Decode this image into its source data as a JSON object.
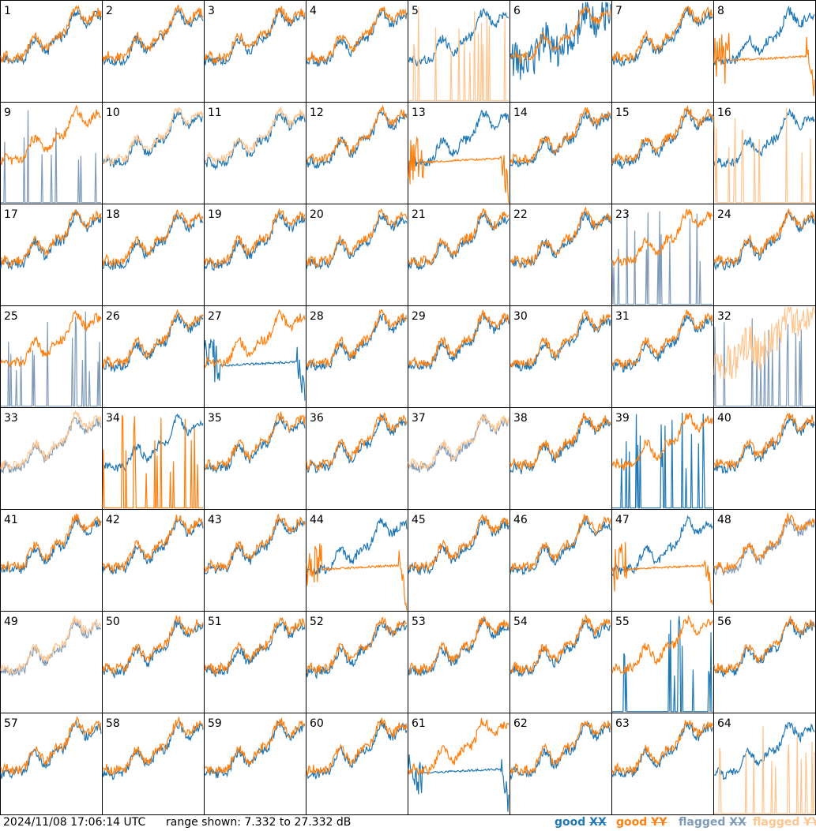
{
  "timestamp": "2024/11/08 17:06:14 UTC",
  "range_text": "range shown: 7.332 to 27.332 dB",
  "legend": [
    {
      "label": "good",
      "pol": "XX",
      "color": "#1f77b4"
    },
    {
      "label": "good",
      "pol": "YY",
      "color": "#ff7f0e"
    },
    {
      "label": "flagged",
      "pol": "XX",
      "color": "#7f9bb8"
    },
    {
      "label": "flagged",
      "pol": "YY",
      "color": "#ffc58f"
    }
  ],
  "chart_data": {
    "type": "line",
    "title": "",
    "ylim": [
      7.332,
      27.332
    ],
    "yunit": "dB",
    "grid": {
      "rows": 8,
      "cols": 8
    },
    "series_names": [
      "good XX",
      "good YY",
      "flagged XX",
      "flagged YY"
    ],
    "colors": {
      "good_xx": "#1f77b4",
      "good_yy": "#ff7f0e",
      "flagged_xx": "#7f9bb8",
      "flagged_yy": "#ffc58f"
    },
    "panels": [
      {
        "label": "1",
        "xx": "good",
        "yy": "good",
        "xx_style": "normal",
        "yy_style": "normal"
      },
      {
        "label": "2",
        "xx": "good",
        "yy": "good",
        "xx_style": "normal",
        "yy_style": "normal"
      },
      {
        "label": "3",
        "xx": "good",
        "yy": "good",
        "xx_style": "normal",
        "yy_style": "normal"
      },
      {
        "label": "4",
        "xx": "good",
        "yy": "good",
        "xx_style": "normal",
        "yy_style": "normal"
      },
      {
        "label": "5",
        "xx": "good",
        "yy": "flagged",
        "xx_style": "normal",
        "yy_style": "spiky"
      },
      {
        "label": "6",
        "xx": "good",
        "yy": "good",
        "xx_style": "noisy",
        "yy_style": "normal"
      },
      {
        "label": "7",
        "xx": "good",
        "yy": "good",
        "xx_style": "normal",
        "yy_style": "normal"
      },
      {
        "label": "8",
        "xx": "good",
        "yy": "good",
        "xx_style": "normal",
        "yy_style": "flat"
      },
      {
        "label": "9",
        "xx": "flagged",
        "yy": "good",
        "xx_style": "spiky",
        "yy_style": "normal"
      },
      {
        "label": "10",
        "xx": "good",
        "yy": "flagged",
        "xx_style": "normal",
        "yy_style": "normal"
      },
      {
        "label": "11",
        "xx": "good",
        "yy": "flagged",
        "xx_style": "normal",
        "yy_style": "normal"
      },
      {
        "label": "12",
        "xx": "good",
        "yy": "good",
        "xx_style": "normal",
        "yy_style": "normal"
      },
      {
        "label": "13",
        "xx": "good",
        "yy": "good",
        "xx_style": "normal",
        "yy_style": "flat"
      },
      {
        "label": "14",
        "xx": "good",
        "yy": "good",
        "xx_style": "normal",
        "yy_style": "normal"
      },
      {
        "label": "15",
        "xx": "good",
        "yy": "good",
        "xx_style": "normal",
        "yy_style": "normal"
      },
      {
        "label": "16",
        "xx": "good",
        "yy": "flagged",
        "xx_style": "normal",
        "yy_style": "spiky"
      },
      {
        "label": "17",
        "xx": "good",
        "yy": "good",
        "xx_style": "normal",
        "yy_style": "normal"
      },
      {
        "label": "18",
        "xx": "good",
        "yy": "good",
        "xx_style": "normal",
        "yy_style": "normal"
      },
      {
        "label": "19",
        "xx": "good",
        "yy": "good",
        "xx_style": "normal",
        "yy_style": "normal"
      },
      {
        "label": "20",
        "xx": "good",
        "yy": "good",
        "xx_style": "normal",
        "yy_style": "normal"
      },
      {
        "label": "21",
        "xx": "good",
        "yy": "good",
        "xx_style": "normal",
        "yy_style": "normal"
      },
      {
        "label": "22",
        "xx": "good",
        "yy": "good",
        "xx_style": "normal",
        "yy_style": "normal"
      },
      {
        "label": "23",
        "xx": "flagged",
        "yy": "good",
        "xx_style": "spiky",
        "yy_style": "normal"
      },
      {
        "label": "24",
        "xx": "good",
        "yy": "good",
        "xx_style": "normal",
        "yy_style": "normal"
      },
      {
        "label": "25",
        "xx": "flagged",
        "yy": "good",
        "xx_style": "spiky",
        "yy_style": "normal"
      },
      {
        "label": "26",
        "xx": "good",
        "yy": "good",
        "xx_style": "normal",
        "yy_style": "normal"
      },
      {
        "label": "27",
        "xx": "good",
        "yy": "good",
        "xx_style": "flat",
        "yy_style": "normal"
      },
      {
        "label": "28",
        "xx": "good",
        "yy": "good",
        "xx_style": "normal",
        "yy_style": "normal"
      },
      {
        "label": "29",
        "xx": "good",
        "yy": "good",
        "xx_style": "normal",
        "yy_style": "normal"
      },
      {
        "label": "30",
        "xx": "good",
        "yy": "good",
        "xx_style": "normal",
        "yy_style": "normal"
      },
      {
        "label": "31",
        "xx": "good",
        "yy": "good",
        "xx_style": "normal",
        "yy_style": "normal"
      },
      {
        "label": "32",
        "xx": "flagged",
        "yy": "flagged",
        "xx_style": "spiky",
        "yy_style": "noisy"
      },
      {
        "label": "33",
        "xx": "flagged",
        "yy": "flagged",
        "xx_style": "normal",
        "yy_style": "normal"
      },
      {
        "label": "34",
        "xx": "good",
        "yy": "good",
        "xx_style": "normal",
        "yy_style": "spiky"
      },
      {
        "label": "35",
        "xx": "good",
        "yy": "good",
        "xx_style": "normal",
        "yy_style": "normal"
      },
      {
        "label": "36",
        "xx": "good",
        "yy": "good",
        "xx_style": "normal",
        "yy_style": "normal"
      },
      {
        "label": "37",
        "xx": "flagged",
        "yy": "flagged",
        "xx_style": "normal",
        "yy_style": "normal"
      },
      {
        "label": "38",
        "xx": "good",
        "yy": "good",
        "xx_style": "normal",
        "yy_style": "normal"
      },
      {
        "label": "39",
        "xx": "good",
        "yy": "good",
        "xx_style": "spiky",
        "yy_style": "normal"
      },
      {
        "label": "40",
        "xx": "good",
        "yy": "good",
        "xx_style": "normal",
        "yy_style": "normal"
      },
      {
        "label": "41",
        "xx": "good",
        "yy": "good",
        "xx_style": "normal",
        "yy_style": "normal"
      },
      {
        "label": "42",
        "xx": "good",
        "yy": "good",
        "xx_style": "normal",
        "yy_style": "normal"
      },
      {
        "label": "43",
        "xx": "good",
        "yy": "good",
        "xx_style": "normal",
        "yy_style": "normal"
      },
      {
        "label": "44",
        "xx": "good",
        "yy": "good",
        "xx_style": "normal",
        "yy_style": "flat"
      },
      {
        "label": "45",
        "xx": "good",
        "yy": "good",
        "xx_style": "normal",
        "yy_style": "normal"
      },
      {
        "label": "46",
        "xx": "good",
        "yy": "good",
        "xx_style": "normal",
        "yy_style": "normal"
      },
      {
        "label": "47",
        "xx": "good",
        "yy": "good",
        "xx_style": "normal",
        "yy_style": "flat"
      },
      {
        "label": "48",
        "xx": "flagged",
        "yy": "good",
        "xx_style": "normal",
        "yy_style": "normal"
      },
      {
        "label": "49",
        "xx": "flagged",
        "yy": "flagged",
        "xx_style": "normal",
        "yy_style": "normal"
      },
      {
        "label": "50",
        "xx": "good",
        "yy": "good",
        "xx_style": "normal",
        "yy_style": "normal"
      },
      {
        "label": "51",
        "xx": "good",
        "yy": "good",
        "xx_style": "normal",
        "yy_style": "normal"
      },
      {
        "label": "52",
        "xx": "good",
        "yy": "good",
        "xx_style": "normal",
        "yy_style": "normal"
      },
      {
        "label": "53",
        "xx": "good",
        "yy": "good",
        "xx_style": "normal",
        "yy_style": "normal"
      },
      {
        "label": "54",
        "xx": "good",
        "yy": "good",
        "xx_style": "normal",
        "yy_style": "normal"
      },
      {
        "label": "55",
        "xx": "good",
        "yy": "good",
        "xx_style": "spiky",
        "yy_style": "normal"
      },
      {
        "label": "56",
        "xx": "good",
        "yy": "good",
        "xx_style": "normal",
        "yy_style": "normal"
      },
      {
        "label": "57",
        "xx": "good",
        "yy": "good",
        "xx_style": "normal",
        "yy_style": "normal"
      },
      {
        "label": "58",
        "xx": "good",
        "yy": "good",
        "xx_style": "normal",
        "yy_style": "normal"
      },
      {
        "label": "59",
        "xx": "good",
        "yy": "good",
        "xx_style": "normal",
        "yy_style": "normal"
      },
      {
        "label": "60",
        "xx": "good",
        "yy": "good",
        "xx_style": "normal",
        "yy_style": "normal"
      },
      {
        "label": "61",
        "xx": "good",
        "yy": "good",
        "xx_style": "flat",
        "yy_style": "normal"
      },
      {
        "label": "62",
        "xx": "good",
        "yy": "good",
        "xx_style": "normal",
        "yy_style": "normal"
      },
      {
        "label": "63",
        "xx": "good",
        "yy": "good",
        "xx_style": "normal",
        "yy_style": "normal"
      },
      {
        "label": "64",
        "xx": "good",
        "yy": "flagged",
        "xx_style": "normal",
        "yy_style": "spiky"
      }
    ]
  }
}
